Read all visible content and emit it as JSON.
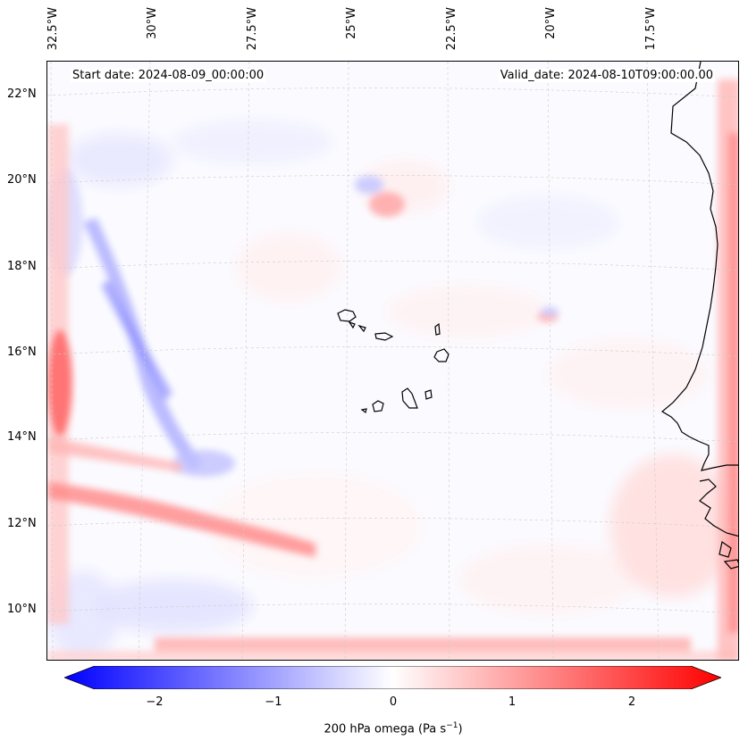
{
  "map": {
    "longitude_labels": [
      "32.5°W",
      "30°W",
      "27.5°W",
      "25°W",
      "22.5°W",
      "20°W",
      "17.5°W"
    ],
    "latitude_labels": [
      "22°N",
      "20°N",
      "18°N",
      "16°N",
      "14°N",
      "12°N",
      "10°N"
    ],
    "start_date": "Start date: 2024-08-09_00:00:00",
    "valid_date": "Valid_date: 2024-08-10T09:00:00.00",
    "field": "200 hPa omega",
    "units": "Pa s",
    "units_exponent": "−1",
    "colors": {
      "negative": "#0000ff",
      "neutral": "#ffffff",
      "positive": "#ff0000"
    }
  },
  "colorbar": {
    "ticks": [
      "−2",
      "−1",
      "0",
      "1",
      "2"
    ],
    "tick_values": [
      -2,
      -1,
      0,
      1,
      2
    ],
    "range": [
      -2.5,
      2.5
    ]
  }
}
